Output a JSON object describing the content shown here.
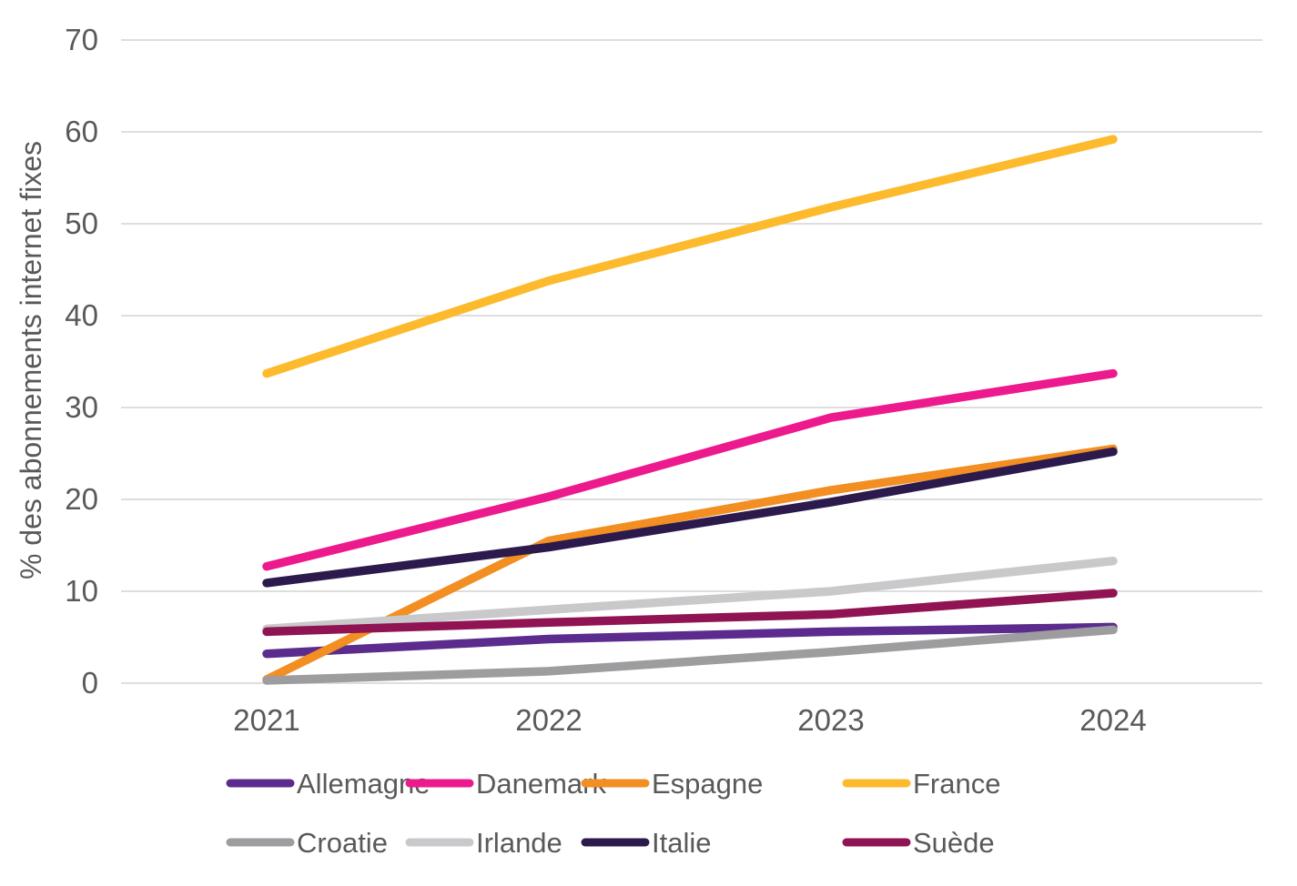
{
  "chart_data": {
    "type": "line",
    "title": "",
    "xlabel": "",
    "ylabel": "% des abonnements internet fixes",
    "categories": [
      "2021",
      "2022",
      "2023",
      "2024"
    ],
    "ylim": [
      0,
      70
    ],
    "yticks": [
      0,
      10,
      20,
      30,
      40,
      50,
      60,
      70
    ],
    "grid": "horizontal",
    "legend_position": "bottom",
    "legend_rows": [
      [
        "Allemagne",
        "Danemark",
        "Espagne",
        "France"
      ],
      [
        "Croatie",
        "Irlande",
        "Italie",
        "Suède"
      ]
    ],
    "series": [
      {
        "name": "Allemagne",
        "color": "#5B2C8D",
        "values": [
          3.2,
          4.8,
          5.6,
          6.1
        ]
      },
      {
        "name": "Danemark",
        "color": "#EC1A8D",
        "values": [
          12.7,
          20.3,
          28.9,
          33.7
        ]
      },
      {
        "name": "Espagne",
        "color": "#F28E22",
        "values": [
          0.4,
          15.5,
          21.0,
          25.5
        ]
      },
      {
        "name": "France",
        "color": "#FCBA2C",
        "values": [
          33.7,
          43.8,
          51.8,
          59.2
        ]
      },
      {
        "name": "Croatie",
        "color": "#9D9DA0",
        "values": [
          0.3,
          1.3,
          3.4,
          5.8
        ]
      },
      {
        "name": "Irlande",
        "color": "#C9C9CC",
        "values": [
          5.9,
          8.0,
          10.0,
          13.3
        ]
      },
      {
        "name": "Italie",
        "color": "#2C1A4D",
        "values": [
          10.9,
          14.8,
          19.7,
          25.2
        ]
      },
      {
        "name": "Suède",
        "color": "#901353",
        "values": [
          5.6,
          6.6,
          7.5,
          9.8
        ]
      }
    ]
  },
  "colors": {
    "grid": "#D9D9D9",
    "text": "#595959",
    "background": "#FFFFFF"
  }
}
